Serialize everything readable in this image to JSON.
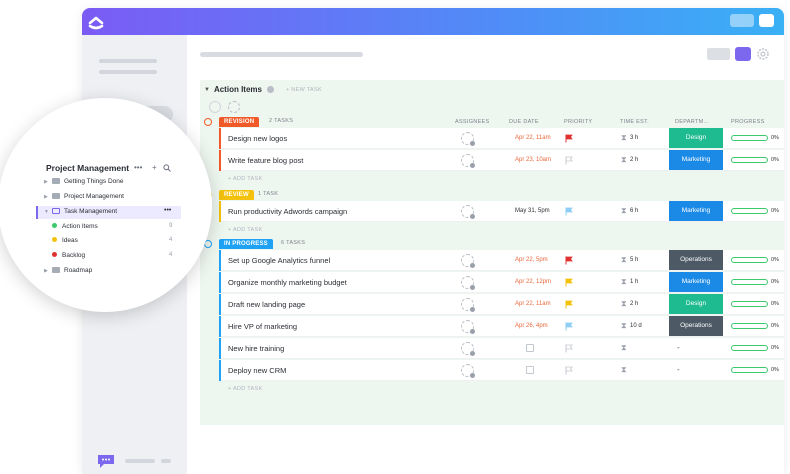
{
  "colors": {
    "revision": "#f05a28",
    "review": "#f4c20d",
    "in_progress": "#1fa2f5",
    "design": "#1dbb8f",
    "marketing": "#1b8ae6",
    "operations": "#4d5a66",
    "due_red": "#e8673b",
    "progress": "#3bc96b",
    "accent": "#7b68ee"
  },
  "list": {
    "title": "Action Items",
    "new_task": "+ NEW TASK",
    "add_task": "+ ADD TASK"
  },
  "columns": {
    "assignees": "ASSIGNEES",
    "due_date": "DUE DATE",
    "priority": "PRIORITY",
    "time_est": "TIME EST.",
    "department": "DEPARTM...",
    "progress": "PROGRESS"
  },
  "groups": [
    {
      "status": "REVISION",
      "count": "2 TASKS",
      "tasks": [
        {
          "name": "Design new logos",
          "due": "Apr 22, 11am",
          "priority": "urgent",
          "est": "3 h",
          "dept": "Design",
          "progress": "0%"
        },
        {
          "name": "Write feature blog post",
          "due": "Apr 23, 10am",
          "priority": "none",
          "est": "2 h",
          "dept": "Marketing",
          "progress": "0%"
        }
      ]
    },
    {
      "status": "REVIEW",
      "count": "1 TASK",
      "tasks": [
        {
          "name": "Run productivity Adwords campaign",
          "due": "May 31, 5pm",
          "priority": "low",
          "est": "6 h",
          "dept": "Marketing",
          "progress": "0%"
        }
      ]
    },
    {
      "status": "IN PROGRESS",
      "count": "6 TASKS",
      "tasks": [
        {
          "name": "Set up Google Analytics funnel",
          "due": "Apr 22, 5pm",
          "priority": "urgent",
          "est": "5 h",
          "dept": "Operations",
          "progress": "0%"
        },
        {
          "name": "Organize monthly marketing budget",
          "due": "Apr 22, 12pm",
          "priority": "high",
          "est": "1 h",
          "dept": "Marketing",
          "progress": "0%"
        },
        {
          "name": "Draft new landing page",
          "due": "Apr 22, 11am",
          "priority": "high",
          "est": "2 h",
          "dept": "Design",
          "progress": "0%"
        },
        {
          "name": "Hire VP of marketing",
          "due": "Apr 26, 4pm",
          "priority": "low",
          "est": "10 d",
          "dept": "Operations",
          "progress": "0%"
        },
        {
          "name": "New hire training",
          "due": "",
          "priority": "none",
          "est": "",
          "dept": "-",
          "progress": "0%"
        },
        {
          "name": "Deploy new CRM",
          "due": "",
          "priority": "none",
          "est": "",
          "dept": "-",
          "progress": "0%"
        }
      ]
    }
  ],
  "sidebar_zoom": {
    "title": "Project Management",
    "items": [
      {
        "label": "Getting Things Done",
        "type": "folder"
      },
      {
        "label": "Project Management",
        "type": "folder"
      },
      {
        "label": "Task Management",
        "type": "folder-open",
        "selected": true
      },
      {
        "label": "Action Items",
        "type": "list",
        "dot": "#3bc96b",
        "count": "9"
      },
      {
        "label": "Ideas",
        "type": "list",
        "dot": "#f4c20d",
        "count": "4"
      },
      {
        "label": "Backlog",
        "type": "list",
        "dot": "#e03131",
        "count": "4"
      },
      {
        "label": "Roadmap",
        "type": "folder"
      }
    ]
  }
}
